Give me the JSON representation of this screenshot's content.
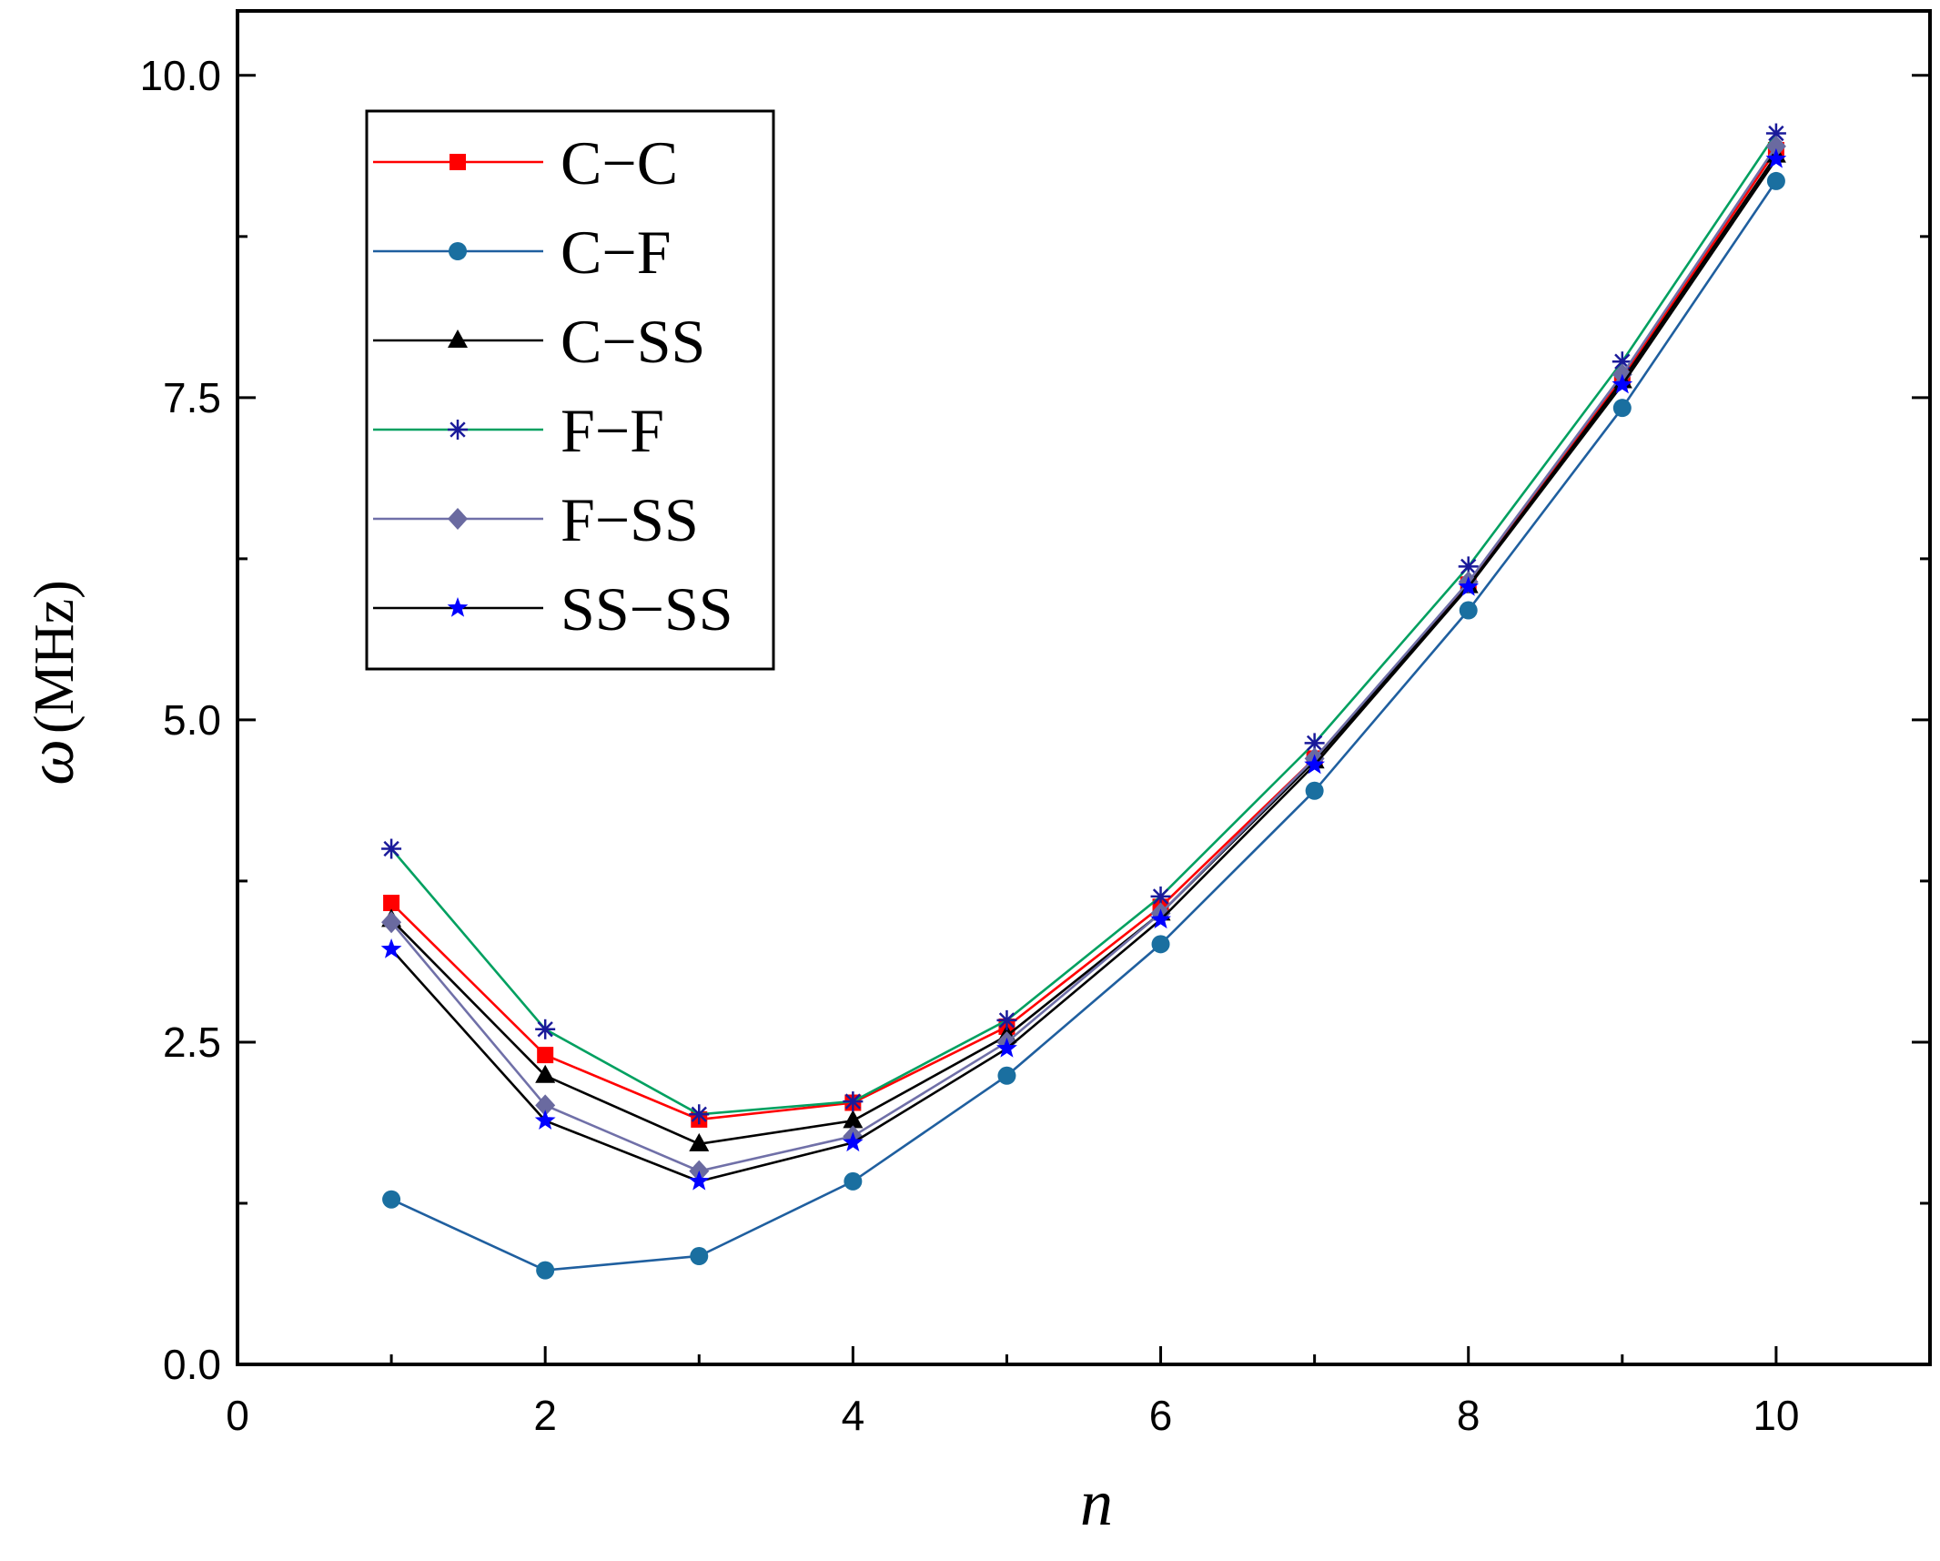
{
  "chart_data": {
    "type": "line",
    "title": "",
    "xlabel": "n",
    "ylabel": "ω",
    "ylabel_unit": "(MHz)",
    "xlim": [
      0,
      11
    ],
    "ylim": [
      0,
      10.5
    ],
    "xticks": [
      0,
      2,
      4,
      6,
      8,
      10
    ],
    "xtick_labels": [
      "0",
      "2",
      "4",
      "6",
      "8",
      "10"
    ],
    "yticks": [
      0,
      2.5,
      5,
      7.5,
      10
    ],
    "ytick_labels": [
      "0.0",
      "2.5",
      "5.0",
      "7.5",
      "10.0"
    ],
    "y_minor_step": 1.25,
    "x": [
      1,
      2,
      3,
      4,
      5,
      6,
      7,
      8,
      9,
      10
    ],
    "legend_position": "top-left",
    "series": [
      {
        "name": "C−C",
        "color": "#ff0000",
        "marker": "square",
        "marker_color": "#ff0000",
        "values": [
          3.58,
          2.4,
          1.9,
          2.03,
          2.62,
          3.55,
          4.7,
          6.05,
          7.65,
          9.42
        ]
      },
      {
        "name": "C−F",
        "color": "#1f5f9f",
        "marker": "circle",
        "marker_color": "#1a6fa0",
        "values": [
          1.28,
          0.73,
          0.84,
          1.42,
          2.24,
          3.26,
          4.45,
          5.85,
          7.42,
          9.18
        ]
      },
      {
        "name": "C−SS",
        "color": "#000000",
        "marker": "triangle",
        "marker_color": "#000000",
        "values": [
          3.45,
          2.24,
          1.71,
          1.89,
          2.55,
          3.5,
          4.68,
          6.04,
          7.63,
          9.38
        ]
      },
      {
        "name": "F−F",
        "color": "#00a060",
        "marker": "asterisk",
        "marker_color": "#1a1a9a",
        "values": [
          4.0,
          2.6,
          1.94,
          2.04,
          2.67,
          3.63,
          4.82,
          6.19,
          7.78,
          9.55
        ]
      },
      {
        "name": "F−SS",
        "color": "#7070a8",
        "marker": "diamond",
        "marker_color": "#6a6aa0",
        "values": [
          3.43,
          2.01,
          1.5,
          1.77,
          2.5,
          3.5,
          4.7,
          6.07,
          7.68,
          9.45
        ]
      },
      {
        "name": "SS−SS",
        "color": "#000000",
        "marker": "star",
        "marker_color": "#0000ff",
        "values": [
          3.22,
          1.89,
          1.42,
          1.72,
          2.45,
          3.45,
          4.65,
          6.03,
          7.6,
          9.35
        ]
      }
    ]
  }
}
